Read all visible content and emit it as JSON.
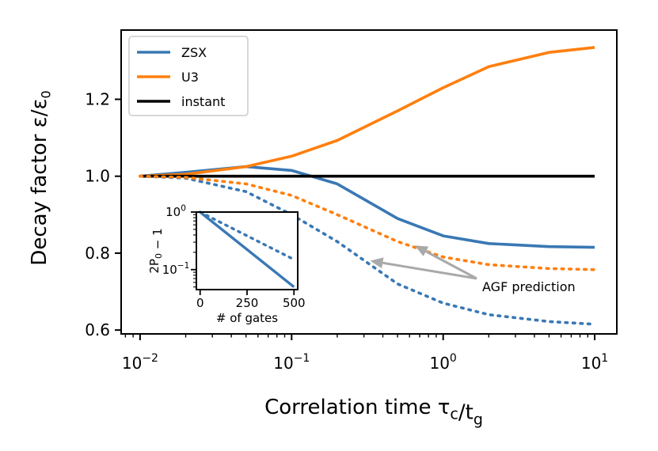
{
  "chart_data": {
    "type": "line",
    "xlabel": "Correlation time τ_c/t_g",
    "ylabel": "Decay factor ε/ε_0",
    "xscale": "log",
    "xlim": [
      0.0075,
      14
    ],
    "ylim": [
      0.59,
      1.38
    ],
    "yticks": [
      0.6,
      0.8,
      1.0,
      1.2
    ],
    "ytick_labels": [
      "0.6",
      "0.8",
      "1.0",
      "1.2"
    ],
    "xticks": [
      0.01,
      0.1,
      1,
      10
    ],
    "xtick_labels": [
      {
        "base": "10",
        "exp": "−2"
      },
      {
        "base": "10",
        "exp": "−1"
      },
      {
        "base": "10",
        "exp": "0"
      },
      {
        "base": "10",
        "exp": "1"
      }
    ],
    "legend_position": "top-left",
    "series": [
      {
        "name": "ZSX",
        "color": "#3a78b4",
        "style": "solid",
        "x": [
          0.01,
          0.02,
          0.05,
          0.1,
          0.2,
          0.5,
          1,
          2,
          5,
          10
        ],
        "y": [
          1.0,
          1.01,
          1.025,
          1.015,
          0.98,
          0.89,
          0.845,
          0.825,
          0.817,
          0.815
        ]
      },
      {
        "name": "U3",
        "color": "#ff7f0e",
        "style": "solid",
        "x": [
          0.01,
          0.02,
          0.05,
          0.1,
          0.2,
          0.5,
          1,
          2,
          5,
          10
        ],
        "y": [
          1.0,
          1.005,
          1.025,
          1.052,
          1.093,
          1.17,
          1.23,
          1.285,
          1.322,
          1.335
        ]
      },
      {
        "name": "instant",
        "color": "#000000",
        "style": "solid",
        "x": [
          0.01,
          10
        ],
        "y": [
          1.0,
          1.0
        ]
      },
      {
        "name": "ZSX AGF",
        "color": "#3a78b4",
        "style": "dotted",
        "x": [
          0.01,
          0.02,
          0.05,
          0.1,
          0.2,
          0.5,
          1,
          2,
          5,
          10
        ],
        "y": [
          1.0,
          0.995,
          0.96,
          0.9,
          0.83,
          0.72,
          0.67,
          0.64,
          0.622,
          0.615
        ]
      },
      {
        "name": "U3 AGF",
        "color": "#ff7f0e",
        "style": "dotted",
        "x": [
          0.01,
          0.02,
          0.05,
          0.1,
          0.2,
          0.5,
          1,
          2,
          5,
          10
        ],
        "y": [
          1.0,
          0.997,
          0.98,
          0.95,
          0.9,
          0.83,
          0.79,
          0.77,
          0.76,
          0.757
        ]
      }
    ],
    "annotation": {
      "text": "AGF prediction",
      "targets": [
        {
          "x": 0.33,
          "y": 0.78
        },
        {
          "x": 0.65,
          "y": 0.82
        }
      ]
    },
    "inset": {
      "xlabel": "# of gates",
      "ylabel": "2P_0 − 1",
      "xlim": [
        -20,
        520
      ],
      "ylim": [
        0.045,
        1.0
      ],
      "yscale": "log",
      "xticks": [
        0,
        250,
        500
      ],
      "xtick_labels": [
        "0",
        "250",
        "500"
      ],
      "yticks": [
        1.0,
        0.1
      ],
      "ytick_labels": [
        {
          "base": "10",
          "exp": "0"
        },
        {
          "base": "10",
          "exp": "−1"
        }
      ],
      "series": [
        {
          "name": "ZSX",
          "color": "#3a78b4",
          "style": "solid",
          "x": [
            0,
            500
          ],
          "y": [
            1.0,
            0.05
          ]
        },
        {
          "name": "ZSX AGF",
          "color": "#3a78b4",
          "style": "dotted",
          "x": [
            0,
            500
          ],
          "y": [
            1.0,
            0.15
          ]
        }
      ]
    }
  }
}
